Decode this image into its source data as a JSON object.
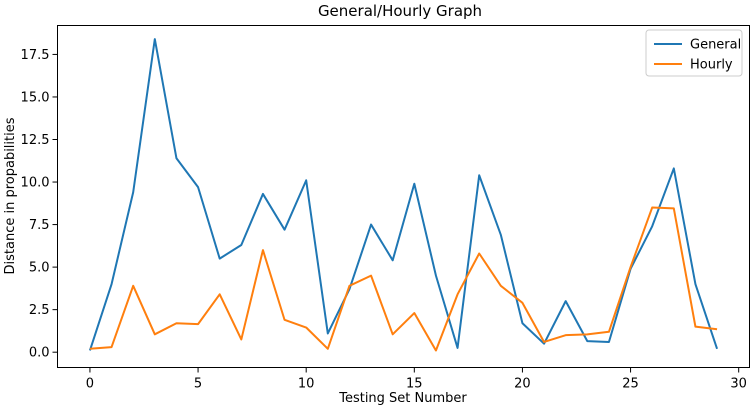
{
  "chart_data": {
    "type": "line",
    "title": "General/Hourly Graph",
    "xlabel": "Testing Set Number",
    "ylabel": "Distance in propabilities",
    "xlim": [
      -1.5,
      30.5
    ],
    "ylim": [
      -0.9,
      19.2
    ],
    "xticks": [
      0,
      5,
      10,
      15,
      20,
      25,
      30
    ],
    "xtick_labels": [
      "0",
      "5",
      "10",
      "15",
      "20",
      "25",
      "30"
    ],
    "yticks": [
      0.0,
      2.5,
      5.0,
      7.5,
      10.0,
      12.5,
      15.0,
      17.5
    ],
    "ytick_labels": [
      "0.0",
      "2.5",
      "5.0",
      "7.5",
      "10.0",
      "12.5",
      "15.0",
      "17.5"
    ],
    "grid": false,
    "legend_position": "top-right",
    "x": [
      0,
      1,
      2,
      3,
      4,
      5,
      6,
      7,
      8,
      9,
      10,
      11,
      12,
      13,
      14,
      15,
      16,
      17,
      18,
      19,
      20,
      21,
      22,
      23,
      24,
      25,
      26,
      27,
      28,
      29
    ],
    "series": [
      {
        "name": "General",
        "color": "#1f77b4",
        "values": [
          0.1,
          4.0,
          9.4,
          18.4,
          11.4,
          9.7,
          5.5,
          6.3,
          9.3,
          7.2,
          10.1,
          1.1,
          3.7,
          7.5,
          5.4,
          9.9,
          4.5,
          0.25,
          10.4,
          6.9,
          1.7,
          0.5,
          3.0,
          0.65,
          0.6,
          4.9,
          7.4,
          10.8,
          4.0,
          0.2
        ]
      },
      {
        "name": "Hourly",
        "color": "#ff7f0e",
        "values": [
          0.2,
          0.3,
          3.9,
          1.05,
          1.7,
          1.65,
          3.4,
          0.75,
          6.0,
          1.9,
          1.45,
          0.2,
          3.9,
          4.5,
          1.05,
          2.3,
          0.1,
          3.4,
          5.8,
          3.9,
          2.9,
          0.6,
          1.0,
          1.05,
          1.2,
          5.0,
          8.5,
          8.45,
          1.5,
          1.35
        ]
      }
    ]
  }
}
